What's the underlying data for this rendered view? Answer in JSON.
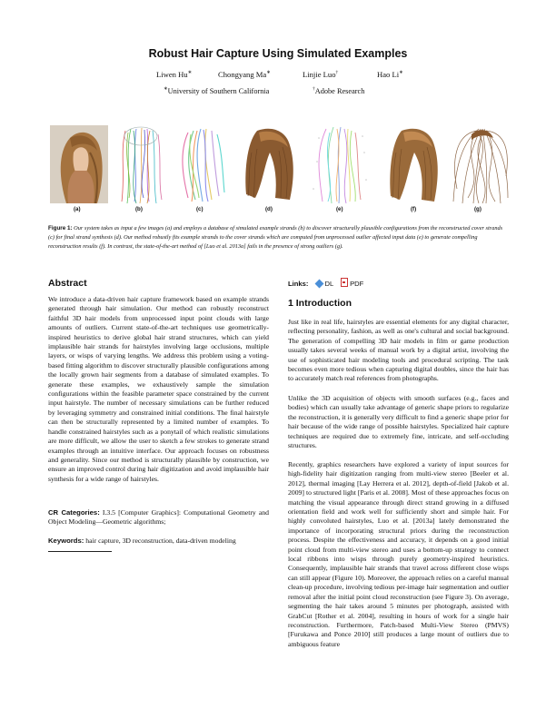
{
  "title": "Robust Hair Capture Using Simulated Examples",
  "authors": [
    {
      "name": "Liwen Hu",
      "mark": "∗"
    },
    {
      "name": "Chongyang Ma",
      "mark": "∗"
    },
    {
      "name": "Linjie Luo",
      "mark": "†"
    },
    {
      "name": "Hao Li",
      "mark": "∗"
    }
  ],
  "affiliations": [
    {
      "mark": "∗",
      "name": "University of Southern California"
    },
    {
      "mark": "†",
      "name": "Adobe Research"
    }
  ],
  "figure": {
    "panels": [
      "(a)",
      "(b)",
      "(c)",
      "(d)",
      "(e)",
      "(f)",
      "(g)"
    ],
    "caption_head": "Figure 1:",
    "caption_body": "Our system takes as input a few images (a) and employs a database of simulated example strands (b) to discover structurally plausible configurations from the reconstructed cover strands (c) for final strand synthesis (d). Our method robustly fits example strands to the cover strands which are computed from unprocessed outlier affected input data (e) to generate compelling reconstruction results (f). In contrast, the state-of-the-art method of [Luo et al. 2013a] fails in the presence of strong outliers (g)."
  },
  "abstract": {
    "heading": "Abstract",
    "body": "We introduce a data-driven hair capture framework based on example strands generated through hair simulation. Our method can robustly reconstruct faithful 3D hair models from unprocessed input point clouds with large amounts of outliers. Current state-of-the-art techniques use geometrically-inspired heuristics to derive global hair strand structures, which can yield implausible hair strands for hairstyles involving large occlusions, multiple layers, or wisps of varying lengths. We address this problem using a voting-based fitting algorithm to discover structurally plausible configurations among the locally grown hair segments from a database of simulated examples. To generate these examples, we exhaustively sample the simulation configurations within the feasible parameter space constrained by the current input hairstyle. The number of necessary simulations can be further reduced by leveraging symmetry and constrained initial conditions. The final hairstyle can then be structurally represented by a limited number of examples. To handle constrained hairstyles such as a ponytail of which realistic simulations are more difficult, we allow the user to sketch a few strokes to generate strand examples through an intuitive interface. Our approach focuses on robustness and generality. Since our method is structurally plausible by construction, we ensure an improved control during hair digitization and avoid implausible hair synthesis for a wide range of hairstyles.",
    "cr_label": "CR Categories:",
    "cr_value": "I.3.5 [Computer Graphics]: Computational Geometry and Object Modeling—Geometric algorithms;",
    "kw_label": "Keywords:",
    "kw_value": "hair capture, 3D reconstruction, data-driven modeling"
  },
  "links": {
    "label": "Links:",
    "dl": "DL",
    "pdf": "PDF"
  },
  "intro": {
    "heading": "1   Introduction",
    "paragraphs": [
      "Just like in real life, hairstyles are essential elements for any digital character, reflecting personality, fashion, as well as one's cultural and social background. The generation of compelling 3D hair models in film or game production usually takes several weeks of manual work by a digital artist, involving the use of sophisticated hair modeling tools and procedural scripting. The task becomes even more tedious when capturing digital doubles, since the hair has to accurately match real references from photographs.",
      "Unlike the 3D acquisition of objects with smooth surfaces (e.g., faces and bodies) which can usually take advantage of generic shape priors to regularize the reconstruction, it is generally very difficult to find a generic shape prior for hair because of the wide range of possible hairstyles. Specialized hair capture techniques are required due to extremely fine, intricate, and self-occluding structures.",
      "Recently, graphics researchers have explored a variety of input sources for high-fidelity hair digitization ranging from multi-view stereo [Beeler et al. 2012], thermal imaging [Lay Herrera et al. 2012], depth-of-field [Jakob et al. 2009] to structured light [Paris et al. 2008]. Most of these approaches focus on matching the visual appearance through direct strand growing in a diffused orientation field and work well for sufficiently short and simple hair. For highly convoluted hairstyles, Luo et al. [2013a] lately demonstrated the importance of incorporating structural priors during the reconstruction process. Despite the effectiveness and accuracy, it depends on a good initial point cloud from multi-view stereo and uses a bottom-up strategy to connect local ribbons into wisps through purely geometry-inspired heuristics. Consequently, implausible hair strands that travel across different close wisps can still appear (Figure 10). Moreover, the approach relies on a careful manual clean-up procedure, involving tedious per-image hair segmentation and outlier removal after the initial point cloud reconstruction (see Figure 3). On average, segmenting the hair takes around 5 minutes per photograph, assisted with GrabCut [Rother et al. 2004], resulting in hours of work for a single hair reconstruction. Furthermore, Patch-based Multi-View Stereo (PMVS) [Furukawa and Ponce 2010] still produces a large mount of outliers due to ambiguous feature"
    ]
  }
}
